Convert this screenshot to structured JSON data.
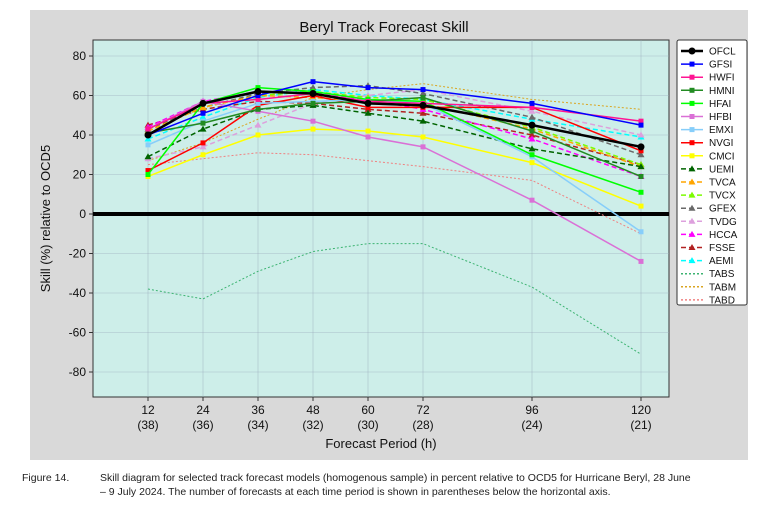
{
  "chart_data": {
    "type": "line",
    "title": "Beryl Track Forecast Skill",
    "xlabel": "Forecast Period (h)",
    "ylabel": "Skill (%) relative to OCD5",
    "x": [
      12,
      24,
      36,
      48,
      60,
      72,
      96,
      120
    ],
    "x_tick_labels": [
      "12",
      "24",
      "36",
      "48",
      "60",
      "72",
      "96",
      "120"
    ],
    "x_tick_counts": [
      "(38)",
      "(36)",
      "(34)",
      "(32)",
      "(30)",
      "(28)",
      "(24)",
      "(21)"
    ],
    "y_ticks": [
      80,
      60,
      40,
      20,
      0,
      -20,
      -40,
      -60,
      -80
    ],
    "ylim": [
      -92,
      88
    ],
    "grid": true,
    "legend_position": "right",
    "zero_line": true,
    "series": [
      {
        "name": "OFCL",
        "color": "#000000",
        "style": "solid",
        "marker": "circle",
        "values": [
          40,
          56,
          62,
          61,
          56,
          55,
          45,
          34
        ]
      },
      {
        "name": "GFSI",
        "color": "#0000ff",
        "style": "solid",
        "marker": "square",
        "values": [
          40,
          51,
          60,
          67,
          64,
          63,
          56,
          45
        ]
      },
      {
        "name": "HWFI",
        "color": "#ff1493",
        "style": "solid",
        "marker": "square",
        "values": [
          43,
          56,
          58,
          61,
          57,
          56,
          54,
          47
        ]
      },
      {
        "name": "HMNI",
        "color": "#228b22",
        "style": "solid",
        "marker": "square",
        "values": [
          41,
          46,
          53,
          56,
          57,
          59,
          42,
          19
        ]
      },
      {
        "name": "HFAI",
        "color": "#00ff00",
        "style": "solid",
        "marker": "square",
        "values": [
          20,
          56,
          64,
          62,
          58,
          57,
          30,
          11
        ]
      },
      {
        "name": "HFBI",
        "color": "#da70d6",
        "style": "solid",
        "marker": "square",
        "values": [
          43,
          57,
          52,
          47,
          39,
          34,
          7,
          -24
        ]
      },
      {
        "name": "EMXI",
        "color": "#87cefa",
        "style": "solid",
        "marker": "square",
        "values": [
          35,
          47,
          56,
          57,
          58,
          56,
          29,
          -9
        ]
      },
      {
        "name": "NVGI",
        "color": "#ff0000",
        "style": "solid",
        "marker": "square",
        "values": [
          22,
          36,
          55,
          60,
          54,
          54,
          54,
          32
        ]
      },
      {
        "name": "CMCI",
        "color": "#ffff00",
        "style": "solid",
        "marker": "square",
        "values": [
          19,
          30,
          40,
          43,
          42,
          39,
          26,
          4
        ]
      },
      {
        "name": "UEMI",
        "color": "#006400",
        "style": "dashed",
        "marker": "triangle",
        "values": [
          29,
          43,
          53,
          55,
          51,
          47,
          33,
          24
        ]
      },
      {
        "name": "TVCA",
        "color": "#ffa500",
        "style": "dashed",
        "marker": "triangle",
        "values": [
          42,
          54,
          60,
          59,
          57,
          56,
          43,
          24
        ]
      },
      {
        "name": "TVCX",
        "color": "#7cfc00",
        "style": "dashed",
        "marker": "triangle",
        "values": [
          42,
          54,
          60,
          62,
          59,
          58,
          44,
          25
        ]
      },
      {
        "name": "GFEX",
        "color": "#696969",
        "style": "dashed",
        "marker": "triangle",
        "values": [
          43,
          54,
          61,
          64,
          65,
          61,
          49,
          30
        ]
      },
      {
        "name": "TVDG",
        "color": "#dda0dd",
        "style": "dashed",
        "marker": "triangle",
        "values": [
          28,
          34,
          45,
          56,
          60,
          63,
          52,
          40
        ]
      },
      {
        "name": "HCCA",
        "color": "#ff00ff",
        "style": "dashed",
        "marker": "triangle",
        "values": [
          44,
          57,
          62,
          61,
          58,
          53,
          38,
          19
        ]
      },
      {
        "name": "FSSE",
        "color": "#b22222",
        "style": "dashed",
        "marker": "triangle",
        "values": [
          45,
          53,
          57,
          56,
          53,
          51,
          40,
          25
        ]
      },
      {
        "name": "AEMI",
        "color": "#00ffff",
        "style": "dashed",
        "marker": "triangle",
        "values": [
          38,
          49,
          59,
          63,
          60,
          58,
          48,
          39
        ]
      },
      {
        "name": "TABS",
        "color": "#3cb371",
        "style": "dotted",
        "marker": "none",
        "values": [
          -38,
          -43,
          -29,
          -19,
          -15,
          -15,
          -37,
          -71
        ]
      },
      {
        "name": "TABM",
        "color": "#daa520",
        "style": "dotted",
        "marker": "none",
        "values": [
          27,
          36,
          48,
          59,
          63,
          66,
          58,
          53
        ]
      },
      {
        "name": "TABD",
        "color": "#f08080",
        "style": "dotted",
        "marker": "none",
        "values": [
          25,
          28,
          31,
          30,
          27,
          24,
          17,
          -10
        ]
      }
    ]
  },
  "caption": {
    "label": "Figure 14.",
    "line1": "Skill diagram for selected track forecast models (homogenous sample) in percent relative to OCD5 for Hurricane Beryl, 28 June",
    "line2": "– 9 July 2024. The number of forecasts at each time period is shown in parentheses below the horizontal axis."
  }
}
